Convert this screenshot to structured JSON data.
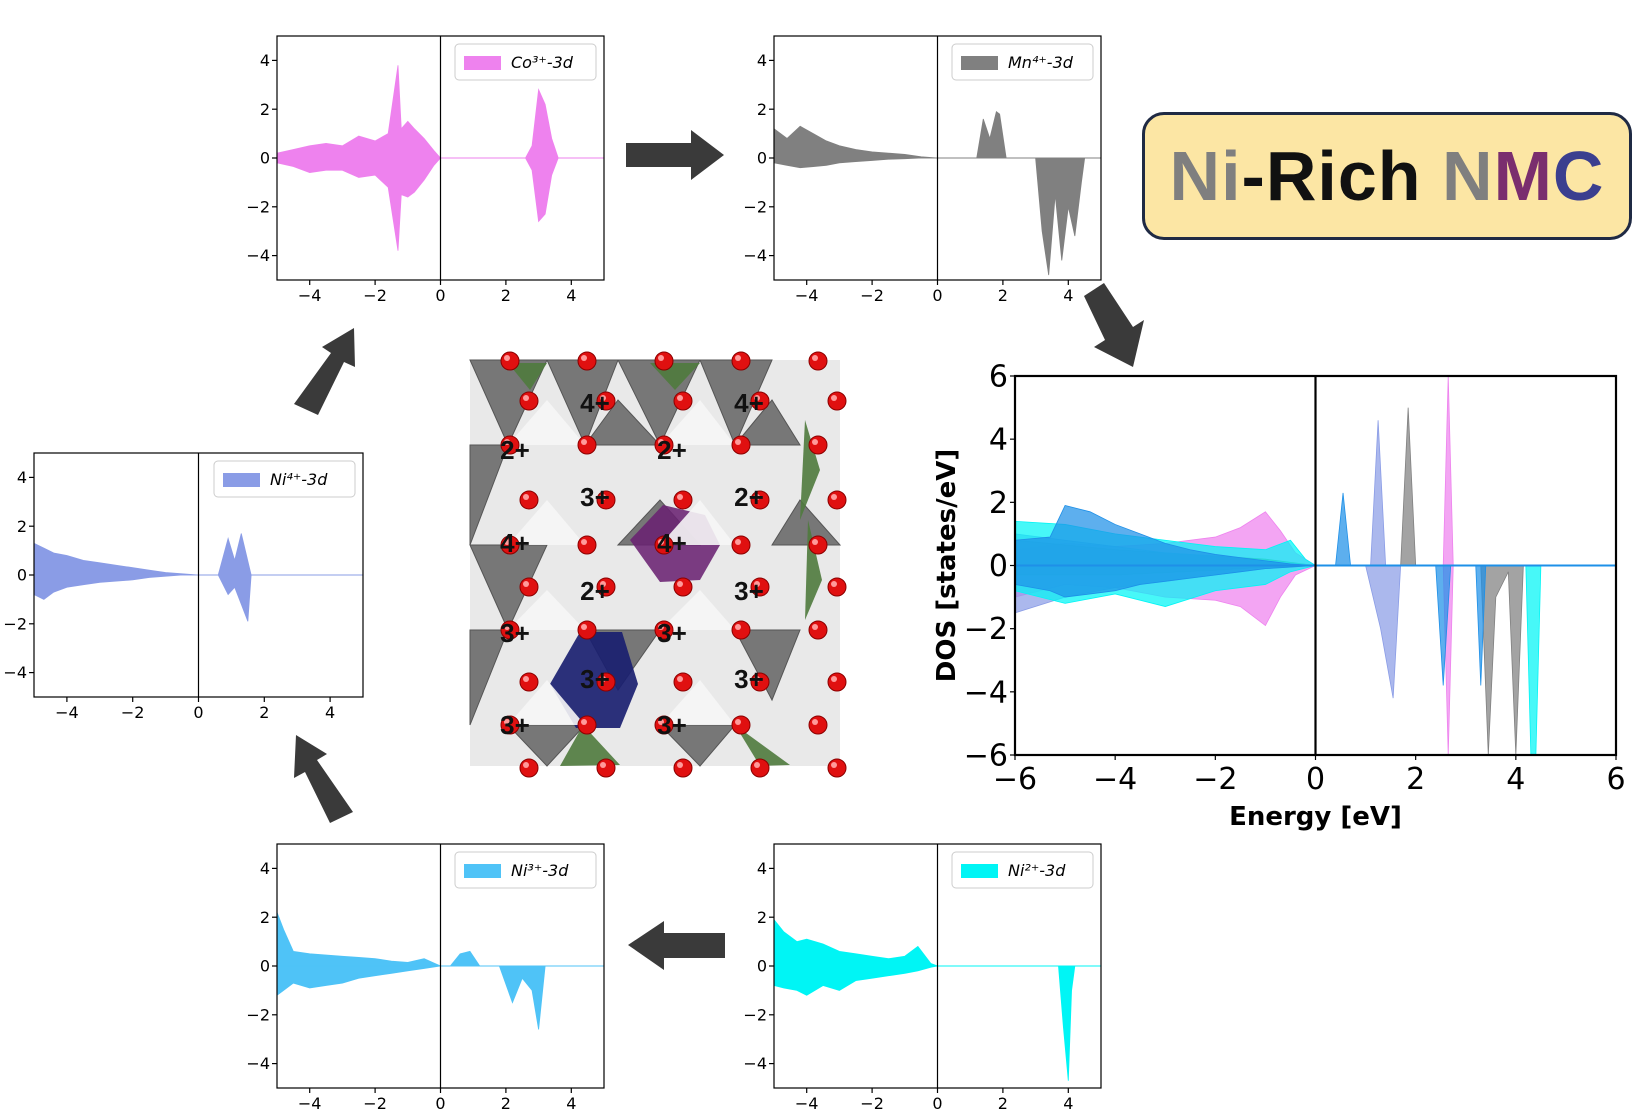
{
  "title": {
    "parts": [
      {
        "text": "Ni",
        "color": "#7f7f7f"
      },
      {
        "text": "-Rich ",
        "color": "#111111"
      },
      {
        "text": "N",
        "color": "#7f7f7f"
      },
      {
        "text": "M",
        "color": "#7a2e6e"
      },
      {
        "text": "C",
        "color": "#3b3f8f"
      }
    ]
  },
  "structure": {
    "labels": [
      "4+",
      "4+",
      "2+",
      "2+",
      "3+",
      "2+",
      "4+",
      "4+",
      "2+",
      "3+",
      "3+",
      "3+",
      "3+",
      "3+",
      "3+",
      "3+"
    ]
  },
  "chart_data": [
    {
      "type": "area",
      "legend": "Co³⁺-3d",
      "color": "#ee82ee",
      "xlim": [
        -5,
        5
      ],
      "ylim": [
        -5,
        5
      ],
      "xticks": [
        "−4",
        "−2",
        "0",
        "2",
        "4"
      ],
      "yticks": [
        "4",
        "2",
        "0",
        "−2",
        "−4"
      ],
      "up": {
        "x": [
          -5,
          -4.5,
          -4,
          -3.5,
          -3,
          -2.5,
          -2,
          -1.6,
          -1.3,
          -1.2,
          -1,
          -0.8,
          -0.5,
          -0.2,
          0,
          2.6,
          2.8,
          3.0,
          3.2,
          3.4,
          3.6,
          5
        ],
        "y": [
          0.2,
          0.35,
          0.5,
          0.6,
          0.5,
          0.9,
          0.7,
          1.0,
          3.8,
          1.2,
          1.5,
          1.2,
          0.8,
          0.3,
          0,
          0,
          0.5,
          2.8,
          2.2,
          0.8,
          0,
          0
        ]
      },
      "down": {
        "x": [
          -5,
          -4.5,
          -4,
          -3.5,
          -3,
          -2.5,
          -2,
          -1.6,
          -1.3,
          -1.2,
          -1,
          -0.8,
          -0.5,
          -0.2,
          0,
          2.6,
          2.8,
          3.0,
          3.2,
          3.4,
          3.6,
          5
        ],
        "y": [
          -0.2,
          -0.35,
          -0.6,
          -0.5,
          -0.5,
          -0.8,
          -0.7,
          -1.2,
          -3.8,
          -1.5,
          -1.6,
          -1.4,
          -0.9,
          -0.3,
          0,
          0,
          -0.5,
          -2.6,
          -2.3,
          -0.7,
          0,
          0
        ]
      }
    },
    {
      "type": "area",
      "legend": "Mn⁴⁺-3d",
      "color": "#808080",
      "xlim": [
        -5,
        5
      ],
      "ylim": [
        -5,
        5
      ],
      "xticks": [
        "−4",
        "−2",
        "0",
        "2",
        "4"
      ],
      "yticks": [
        "4",
        "2",
        "0",
        "−2",
        "−4"
      ],
      "up": {
        "x": [
          -5,
          -4.6,
          -4.2,
          -3.8,
          -3.4,
          -3,
          -2.5,
          -2,
          -1.5,
          -1,
          -0.5,
          0,
          1.2,
          1.4,
          1.6,
          1.8,
          1.9,
          2.1,
          5
        ],
        "y": [
          1.2,
          0.8,
          1.3,
          1.0,
          0.7,
          0.5,
          0.35,
          0.25,
          0.2,
          0.15,
          0.05,
          0,
          0,
          1.6,
          0.8,
          1.9,
          1.8,
          0,
          0
        ]
      },
      "down": {
        "x": [
          -5,
          -4.6,
          -4.2,
          -3.8,
          -3.4,
          -3,
          -2.5,
          -2,
          -1.5,
          -1,
          -0.5,
          0,
          3.0,
          3.2,
          3.4,
          3.6,
          3.8,
          4.0,
          4.2,
          4.4,
          4.5,
          5
        ],
        "y": [
          -0.2,
          -0.3,
          -0.4,
          -0.35,
          -0.3,
          -0.2,
          -0.15,
          -0.1,
          -0.05,
          -0.03,
          0,
          0,
          0,
          -3.0,
          -4.8,
          -1.5,
          -4.2,
          -2.0,
          -3.2,
          -1.0,
          0,
          0
        ]
      }
    },
    {
      "type": "area",
      "legend": "Ni⁴⁺-3d",
      "color": "#8a9ce6",
      "xlim": [
        -5,
        5
      ],
      "ylim": [
        -5,
        5
      ],
      "xticks": [
        "−4",
        "−2",
        "0",
        "2",
        "4"
      ],
      "yticks": [
        "4",
        "2",
        "0",
        "−2",
        "−4"
      ],
      "up": {
        "x": [
          -5,
          -4.7,
          -4.4,
          -4,
          -3.5,
          -3,
          -2.5,
          -2,
          -1.5,
          -1,
          -0.5,
          0,
          0.6,
          0.9,
          1.1,
          1.3,
          1.6,
          5
        ],
        "y": [
          1.3,
          1.1,
          0.9,
          0.8,
          0.6,
          0.5,
          0.4,
          0.3,
          0.2,
          0.1,
          0.05,
          0,
          0,
          1.5,
          0.6,
          1.7,
          0,
          0
        ]
      },
      "down": {
        "x": [
          -5,
          -4.7,
          -4.4,
          -4,
          -3.5,
          -3,
          -2.5,
          -2,
          -1.5,
          -1,
          -0.5,
          0,
          0.6,
          0.9,
          1.1,
          1.3,
          1.5,
          1.6,
          5
        ],
        "y": [
          -0.8,
          -1.0,
          -0.7,
          -0.5,
          -0.4,
          -0.3,
          -0.25,
          -0.2,
          -0.1,
          -0.05,
          0,
          0,
          0,
          -0.8,
          -0.5,
          -1.2,
          -1.9,
          0,
          0
        ]
      }
    },
    {
      "type": "area",
      "legend": "Ni³⁺-3d",
      "color": "#4fc3f7",
      "xlim": [
        -5,
        5
      ],
      "ylim": [
        -5,
        5
      ],
      "xticks": [
        "−4",
        "−2",
        "0",
        "2",
        "4"
      ],
      "yticks": [
        "4",
        "2",
        "0",
        "−2",
        "−4"
      ],
      "up": {
        "x": [
          -5,
          -4.8,
          -4.5,
          -4,
          -3.5,
          -3,
          -2.5,
          -2,
          -1.5,
          -1,
          -0.5,
          0,
          0.3,
          0.6,
          0.9,
          1.2,
          5
        ],
        "y": [
          2.2,
          1.5,
          0.6,
          0.5,
          0.45,
          0.4,
          0.35,
          0.3,
          0.2,
          0.15,
          0.3,
          0,
          0,
          0.5,
          0.6,
          0,
          0
        ]
      },
      "down": {
        "x": [
          -5,
          -4.8,
          -4.5,
          -4,
          -3.5,
          -3,
          -2.5,
          -2,
          -1.5,
          -1,
          -0.5,
          0,
          1.8,
          2.2,
          2.5,
          2.8,
          3.0,
          3.2,
          5
        ],
        "y": [
          -1.2,
          -1.0,
          -0.7,
          -0.9,
          -0.8,
          -0.7,
          -0.5,
          -0.4,
          -0.3,
          -0.2,
          -0.1,
          0,
          0,
          -1.5,
          -0.5,
          -1.0,
          -2.6,
          0,
          0
        ]
      }
    },
    {
      "type": "area",
      "legend": "Ni²⁺-3d",
      "color": "#00f5f5",
      "xlim": [
        -5,
        5
      ],
      "ylim": [
        -5,
        5
      ],
      "xticks": [
        "−4",
        "−2",
        "0",
        "2",
        "4"
      ],
      "yticks": [
        "4",
        "2",
        "0",
        "−2",
        "−4"
      ],
      "up": {
        "x": [
          -5,
          -4.7,
          -4.3,
          -4,
          -3.5,
          -3,
          -2.5,
          -2,
          -1.5,
          -1,
          -0.6,
          -0.2,
          0,
          5
        ],
        "y": [
          1.9,
          1.4,
          1.0,
          1.1,
          0.9,
          0.6,
          0.5,
          0.4,
          0.3,
          0.4,
          0.8,
          0.1,
          0,
          0
        ]
      },
      "down": {
        "x": [
          -5,
          -4.7,
          -4.3,
          -4,
          -3.5,
          -3,
          -2.5,
          -2,
          -1.5,
          -1,
          -0.6,
          -0.2,
          0,
          3.7,
          3.85,
          4.0,
          4.1,
          4.2,
          5
        ],
        "y": [
          -0.8,
          -0.9,
          -1.0,
          -1.2,
          -0.8,
          -1.0,
          -0.6,
          -0.5,
          -0.4,
          -0.3,
          -0.2,
          -0.05,
          0,
          0,
          -2.5,
          -4.7,
          -1.0,
          0,
          0
        ]
      }
    },
    {
      "type": "area",
      "xlabel": "Energy [eV]",
      "ylabel": "DOS [states/eV]",
      "xlim": [
        -6,
        6
      ],
      "ylim": [
        -6,
        6
      ],
      "xticks": [
        "−6",
        "−4",
        "−2",
        "0",
        "2",
        "4",
        "6"
      ],
      "yticks": [
        "6",
        "4",
        "2",
        "0",
        "−2",
        "−4",
        "−6"
      ],
      "series": [
        {
          "color": "#ee82ee",
          "up": {
            "x": [
              -6,
              -5,
              -4,
              -3,
              -2,
              -1.5,
              -1,
              -0.7,
              -0.4,
              0,
              2.55,
              2.65,
              2.75,
              6
            ],
            "y": [
              0.5,
              0.7,
              0.6,
              0.7,
              0.9,
              1.2,
              1.7,
              1.1,
              0.4,
              0,
              0,
              6,
              0,
              0
            ]
          },
          "down": {
            "x": [
              -6,
              -5,
              -4,
              -3,
              -2,
              -1.5,
              -1,
              -0.7,
              -0.4,
              0,
              2.55,
              2.65,
              2.75,
              6
            ],
            "y": [
              -1.0,
              -0.6,
              -0.7,
              -1.0,
              -1.1,
              -1.3,
              -1.9,
              -1.0,
              -0.3,
              0,
              0,
              -6,
              0,
              0
            ]
          }
        },
        {
          "color": "#808080",
          "up": {
            "x": [
              -6,
              -4,
              -2,
              -1,
              0,
              1.7,
              1.85,
              2.0,
              6
            ],
            "y": [
              0.8,
              0.5,
              0.3,
              0.2,
              0,
              0,
              5.0,
              0,
              0
            ]
          },
          "down": {
            "x": [
              -6,
              -4,
              -2,
              -1,
              0,
              3.3,
              3.45,
              3.6,
              3.85,
              4.0,
              4.15,
              6
            ],
            "y": [
              -0.3,
              -0.3,
              -0.15,
              -0.05,
              0,
              0,
              -6,
              -1,
              -0.2,
              -6,
              0,
              0
            ]
          }
        },
        {
          "color": "#8a9ce6",
          "up": {
            "x": [
              -6,
              -5,
              -4,
              -3,
              -2,
              -1,
              0,
              1.1,
              1.25,
              1.4,
              6
            ],
            "y": [
              1.0,
              0.8,
              0.6,
              0.4,
              0.3,
              0.15,
              0,
              0,
              4.6,
              0,
              0
            ]
          },
          "down": {
            "x": [
              -6,
              -5,
              -4,
              -3,
              -2,
              -1,
              0,
              1.0,
              1.3,
              1.55,
              1.7,
              6
            ],
            "y": [
              -1.5,
              -1.0,
              -0.7,
              -0.5,
              -0.3,
              -0.1,
              0,
              0,
              -2.0,
              -4.2,
              0,
              0
            ]
          }
        },
        {
          "color": "#00f5f5",
          "up": {
            "x": [
              -6,
              -5,
              -4,
              -3,
              -2,
              -1,
              -0.5,
              -0.2,
              0,
              6
            ],
            "y": [
              1.4,
              1.3,
              1.0,
              0.8,
              0.6,
              0.5,
              0.8,
              0.2,
              0,
              0
            ]
          },
          "down": {
            "x": [
              -6,
              -5,
              -4,
              -3,
              -2,
              -1,
              -0.5,
              0,
              4.2,
              4.3,
              4.4,
              4.5,
              6
            ],
            "y": [
              -0.8,
              -1.2,
              -0.9,
              -1.3,
              -0.8,
              -0.6,
              -0.2,
              0,
              0,
              -6,
              -6,
              0,
              0
            ]
          }
        },
        {
          "color": "#1e90e8",
          "up": {
            "x": [
              -6,
              -5.3,
              -5,
              -4.5,
              -4,
              -3.5,
              -3,
              -2.5,
              -2,
              -1.5,
              -1,
              -0.5,
              0,
              0.4,
              0.55,
              0.7,
              2.5,
              2.6,
              2.7,
              6
            ],
            "y": [
              0.8,
              0.9,
              1.9,
              1.7,
              1.3,
              1.0,
              0.7,
              0.5,
              0.35,
              0.25,
              0.15,
              0.05,
              0,
              0,
              2.3,
              0,
              0,
              0,
              0,
              0
            ]
          },
          "down": {
            "x": [
              -6,
              -5.3,
              -5,
              -4.5,
              -4,
              -3.5,
              -3,
              -2.5,
              -2,
              -1.5,
              -1,
              -0.5,
              0,
              2.4,
              2.55,
              2.7,
              3.2,
              3.3,
              3.4,
              6
            ],
            "y": [
              -0.6,
              -0.8,
              -1.0,
              -0.9,
              -0.8,
              -0.6,
              -0.5,
              -0.4,
              -0.3,
              -0.2,
              -0.1,
              -0.05,
              0,
              0,
              -3.8,
              0,
              0,
              -3.8,
              0,
              0
            ]
          }
        }
      ]
    }
  ]
}
